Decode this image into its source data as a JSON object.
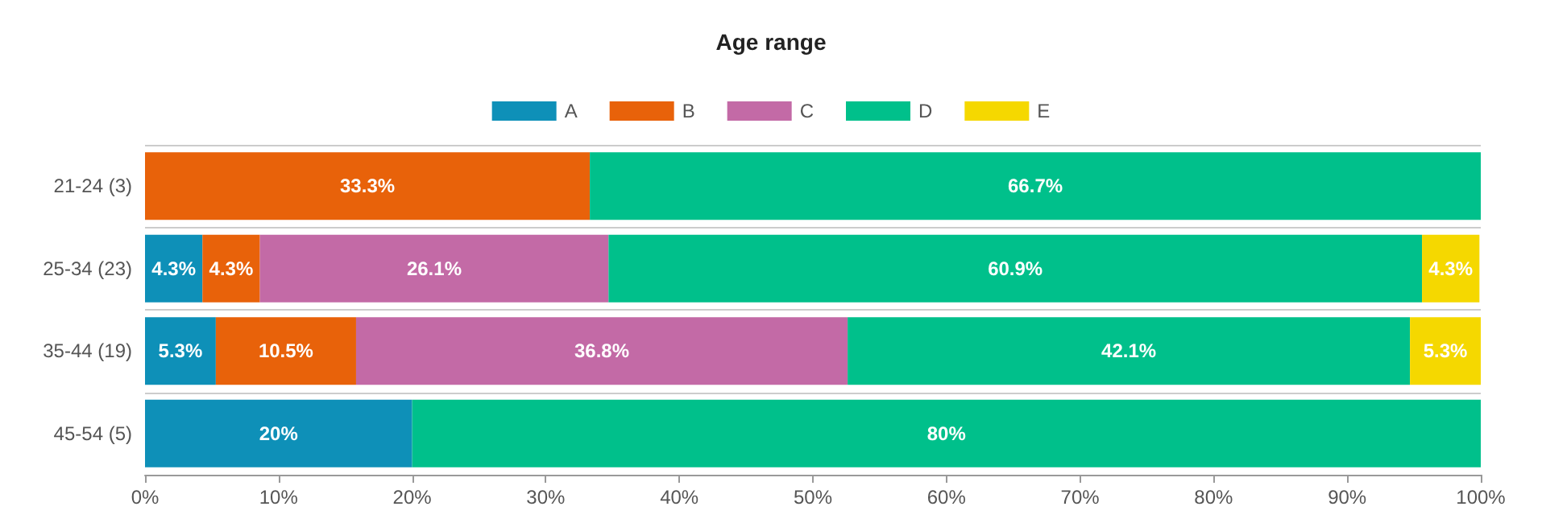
{
  "chart_data": {
    "type": "bar",
    "orientation": "horizontal",
    "stacked": true,
    "title": "Age range",
    "categories": [
      "21-24 (3)",
      "25-34 (23)",
      "35-44 (19)",
      "45-54 (5)"
    ],
    "series": [
      {
        "name": "A",
        "color": "#0e90b8",
        "values": [
          null,
          4.3,
          5.3,
          20
        ],
        "value_labels": [
          null,
          "4.3%",
          "5.3%",
          "20%"
        ]
      },
      {
        "name": "B",
        "color": "#e8620a",
        "values": [
          33.3,
          4.3,
          10.5,
          null
        ],
        "value_labels": [
          "33.3%",
          "4.3%",
          "10.5%",
          null
        ]
      },
      {
        "name": "C",
        "color": "#c36aa6",
        "values": [
          null,
          26.1,
          36.8,
          null
        ],
        "value_labels": [
          null,
          "26.1%",
          "36.8%",
          null
        ]
      },
      {
        "name": "D",
        "color": "#00c08b",
        "values": [
          66.7,
          60.9,
          42.1,
          80
        ],
        "value_labels": [
          "66.7%",
          "60.9%",
          "42.1%",
          "80%"
        ]
      },
      {
        "name": "E",
        "color": "#f5d800",
        "values": [
          null,
          4.3,
          5.3,
          null
        ],
        "value_labels": [
          null,
          "4.3%",
          "5.3%",
          null
        ]
      }
    ],
    "xlim": [
      0,
      100
    ],
    "xticks": [
      {
        "value": 0,
        "label": "0%"
      },
      {
        "value": 10,
        "label": "10%"
      },
      {
        "value": 20,
        "label": "20%"
      },
      {
        "value": 30,
        "label": "30%"
      },
      {
        "value": 40,
        "label": "40%"
      },
      {
        "value": 50,
        "label": "50%"
      },
      {
        "value": 60,
        "label": "60%"
      },
      {
        "value": 70,
        "label": "70%"
      },
      {
        "value": 80,
        "label": "80%"
      },
      {
        "value": 90,
        "label": "90%"
      },
      {
        "value": 100,
        "label": "100%"
      }
    ],
    "grid": "y",
    "legend": "top"
  }
}
